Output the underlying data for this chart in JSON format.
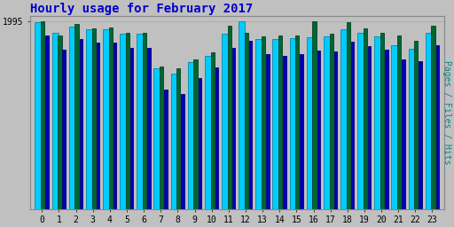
{
  "title": "Hourly usage for February 2017",
  "title_color": "#0000cc",
  "title_fontsize": 10,
  "background_color": "#c0c0c0",
  "plot_bg_color": "#c0c0c0",
  "ylabel_right": "Pages / Files / Hits",
  "ylabel_right_color": "#008888",
  "hours": [
    0,
    1,
    2,
    3,
    4,
    5,
    6,
    7,
    8,
    9,
    10,
    11,
    12,
    13,
    14,
    15,
    16,
    17,
    18,
    19,
    20,
    21,
    22,
    23
  ],
  "hits": [
    1980,
    1870,
    1940,
    1910,
    1910,
    1860,
    1860,
    1490,
    1440,
    1560,
    1630,
    1860,
    1995,
    1800,
    1800,
    1810,
    1820,
    1830,
    1910,
    1870,
    1830,
    1740,
    1700,
    1870
  ],
  "files": [
    1840,
    1690,
    1800,
    1770,
    1770,
    1710,
    1710,
    1270,
    1220,
    1390,
    1500,
    1710,
    1790,
    1640,
    1630,
    1640,
    1680,
    1670,
    1780,
    1730,
    1690,
    1590,
    1570,
    1740
  ],
  "pages": [
    1995,
    1840,
    1960,
    1920,
    1930,
    1870,
    1870,
    1510,
    1490,
    1590,
    1660,
    1950,
    1870,
    1830,
    1840,
    1840,
    1995,
    1860,
    1980,
    1920,
    1870,
    1840,
    1790,
    1950
  ],
  "hits_color": "#00ccff",
  "files_color": "#0000bb",
  "pages_color": "#006633",
  "ymax": 2050,
  "ymin": 0,
  "font_family": "monospace",
  "ytick_label": "1995",
  "ytick_val": 1995
}
